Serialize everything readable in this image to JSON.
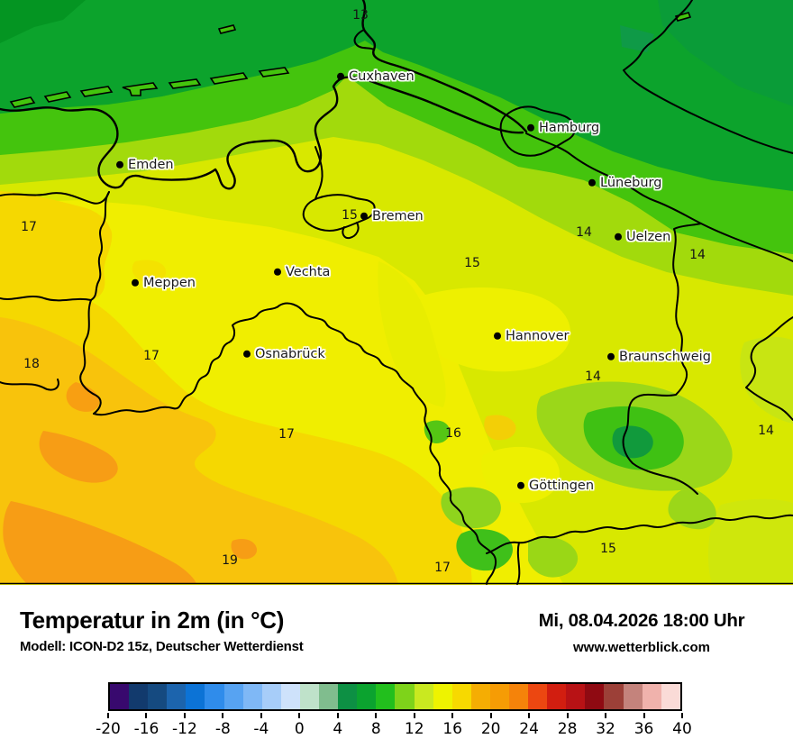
{
  "map": {
    "cities": [
      {
        "name": "Cuxhaven"
      },
      {
        "name": "Hamburg"
      },
      {
        "name": "Emden"
      },
      {
        "name": "Lüneburg"
      },
      {
        "name": "Bremen"
      },
      {
        "name": "Uelzen"
      },
      {
        "name": "Vechta"
      },
      {
        "name": "Meppen"
      },
      {
        "name": "Hannover"
      },
      {
        "name": "Osnabrück"
      },
      {
        "name": "Braunschweig"
      },
      {
        "name": "Göttingen"
      }
    ],
    "temps": [
      {
        "value": "13"
      },
      {
        "value": "17"
      },
      {
        "value": "15"
      },
      {
        "value": "14"
      },
      {
        "value": "14"
      },
      {
        "value": "15"
      },
      {
        "value": "17"
      },
      {
        "value": "18"
      },
      {
        "value": "14"
      },
      {
        "value": "17"
      },
      {
        "value": "16"
      },
      {
        "value": "14"
      },
      {
        "value": "19"
      },
      {
        "value": "15"
      },
      {
        "value": "17"
      }
    ],
    "palette": {
      "sea_green": "#0ca32c",
      "bright_green": "#44c40d",
      "yellow_green": "#a2da0c",
      "pale_yellow_green": "#d8e800",
      "yellow": "#f0ee00",
      "gold": "#f5d801",
      "amber": "#f8c30c",
      "orange": "#f79d15",
      "harz_green": "#119a3c"
    }
  },
  "footer": {
    "title": "Temperatur in 2m (in °C)",
    "model": "Modell: ICON-D2 15z, Deutscher Wetterdienst",
    "datetime": "Mi, 08.04.2026 18:00 Uhr",
    "website": "www.wetterblick.com"
  },
  "legend": {
    "unit": "°C",
    "min": -20,
    "max": 40,
    "degrees_per_segment": 2,
    "tick_labels": [
      "-20",
      "-16",
      "-12",
      "-8",
      "-4",
      "0",
      "4",
      "8",
      "12",
      "16",
      "20",
      "24",
      "28",
      "32",
      "36",
      "40"
    ],
    "segment_colors": [
      "#38096e",
      "#123a6d",
      "#154a80",
      "#1c64ad",
      "#0c73d6",
      "#2f8ceb",
      "#57a3f2",
      "#7fb8f6",
      "#a7cdf9",
      "#cee2fb",
      "#bfe2ca",
      "#80bd8e",
      "#0d9044",
      "#0ba32f",
      "#22bf1d",
      "#7ed31a",
      "#c9e920",
      "#eef300",
      "#f7d900",
      "#f5ad03",
      "#f69c05",
      "#f5830a",
      "#ec4711",
      "#d21e10",
      "#b81215",
      "#8f0a12",
      "#9c4038",
      "#c4837c",
      "#f0b2ac",
      "#fadbd7"
    ]
  }
}
